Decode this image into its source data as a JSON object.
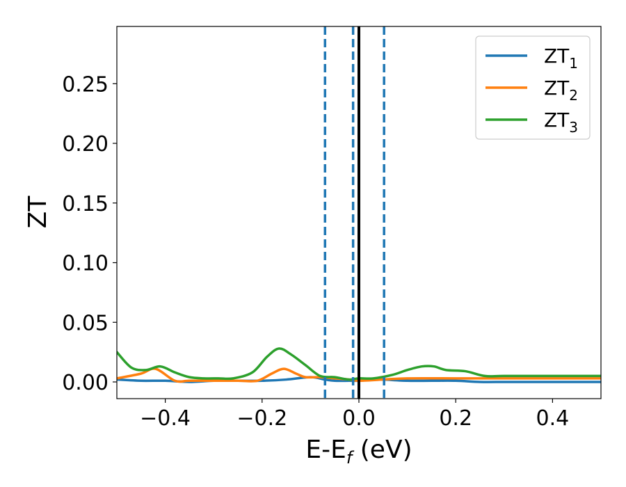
{
  "chart_data": {
    "type": "line",
    "xlabel": {
      "main": "E-E",
      "sub": "f",
      "suffix": " (eV)"
    },
    "ylabel": "ZT",
    "xlim": [
      -0.5,
      0.5
    ],
    "ylim": [
      -0.014,
      0.298
    ],
    "xticks": [
      -0.4,
      -0.2,
      0.0,
      0.2,
      0.4
    ],
    "xtick_labels": [
      "−0.4",
      "−0.2",
      "0.0",
      "0.2",
      "0.4"
    ],
    "yticks": [
      0.0,
      0.05,
      0.1,
      0.15,
      0.2,
      0.25
    ],
    "ytick_labels": [
      "0.00",
      "0.05",
      "0.10",
      "0.15",
      "0.20",
      "0.25"
    ],
    "grid": false,
    "legend_position": "top-right",
    "vlines": [
      {
        "x": -0.07,
        "style": "dashed",
        "color": "#1f77b4"
      },
      {
        "x": -0.012,
        "style": "dashed",
        "color": "#1f77b4"
      },
      {
        "x": 0.052,
        "style": "dashed",
        "color": "#1f77b4"
      },
      {
        "x": 0.0,
        "style": "solid",
        "color": "#000000"
      }
    ],
    "series": [
      {
        "name": "ZT",
        "name_sub": "1",
        "color": "#1f77b4",
        "x": [
          -0.5,
          -0.45,
          -0.4,
          -0.35,
          -0.3,
          -0.25,
          -0.2,
          -0.15,
          -0.1,
          -0.07,
          -0.05,
          -0.02,
          0.0,
          0.03,
          0.05,
          0.1,
          0.15,
          0.2,
          0.25,
          0.3,
          0.35,
          0.4,
          0.45,
          0.5
        ],
        "y": [
          0.002,
          0.001,
          0.001,
          0.0,
          0.001,
          0.001,
          0.001,
          0.002,
          0.004,
          0.002,
          0.001,
          0.001,
          0.001,
          0.002,
          0.002,
          0.001,
          0.001,
          0.001,
          0.0,
          0.0,
          0.0,
          0.0,
          0.0,
          0.0
        ]
      },
      {
        "name": "ZT",
        "name_sub": "2",
        "color": "#ff7f0e",
        "x": [
          -0.5,
          -0.45,
          -0.42,
          -0.38,
          -0.35,
          -0.3,
          -0.25,
          -0.21,
          -0.18,
          -0.155,
          -0.13,
          -0.11,
          -0.08,
          -0.05,
          -0.02,
          0.0,
          0.05,
          0.1,
          0.2,
          0.3,
          0.4,
          0.5
        ],
        "y": [
          0.003,
          0.007,
          0.011,
          0.001,
          0.001,
          0.001,
          0.001,
          0.001,
          0.007,
          0.011,
          0.007,
          0.004,
          0.004,
          0.003,
          0.002,
          0.001,
          0.002,
          0.003,
          0.003,
          0.003,
          0.003,
          0.003
        ]
      },
      {
        "name": "ZT",
        "name_sub": "3",
        "color": "#2ca02c",
        "x": [
          -0.5,
          -0.47,
          -0.44,
          -0.41,
          -0.38,
          -0.35,
          -0.32,
          -0.29,
          -0.26,
          -0.22,
          -0.19,
          -0.165,
          -0.14,
          -0.11,
          -0.08,
          -0.05,
          -0.02,
          0.0,
          0.03,
          0.07,
          0.1,
          0.13,
          0.155,
          0.18,
          0.22,
          0.26,
          0.3,
          0.4,
          0.5
        ],
        "y": [
          0.025,
          0.012,
          0.01,
          0.013,
          0.008,
          0.004,
          0.003,
          0.003,
          0.003,
          0.008,
          0.021,
          0.028,
          0.023,
          0.014,
          0.005,
          0.004,
          0.002,
          0.003,
          0.003,
          0.006,
          0.01,
          0.013,
          0.013,
          0.01,
          0.009,
          0.005,
          0.005,
          0.005,
          0.005
        ]
      }
    ]
  }
}
